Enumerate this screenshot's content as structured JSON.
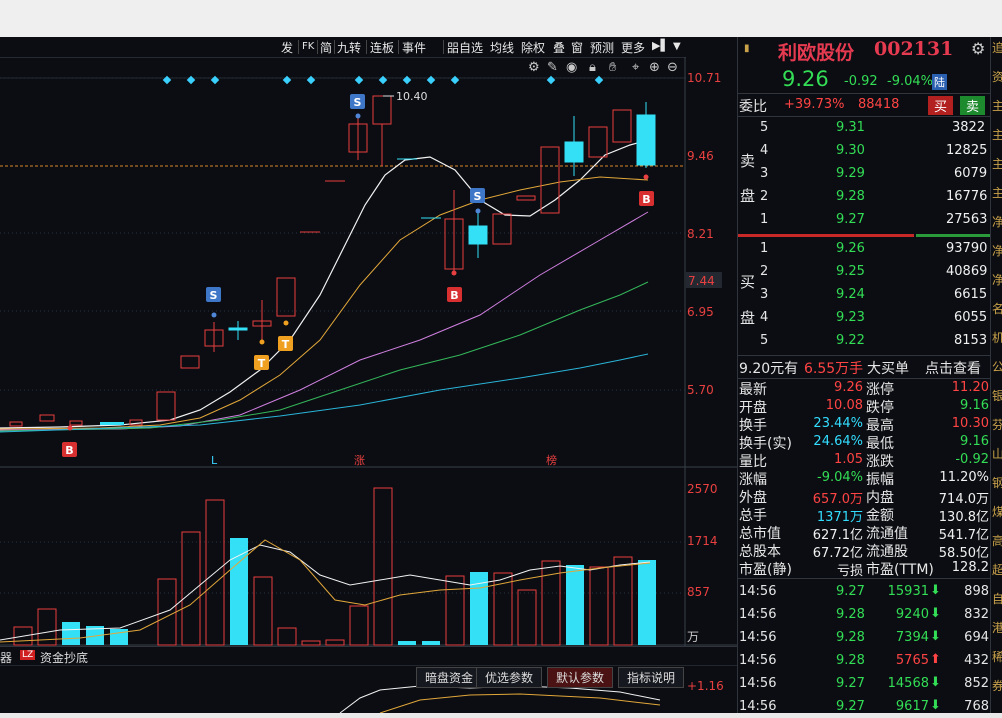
{
  "menu": [
    "发",
    "FK",
    "简",
    "九转",
    "连板",
    "事件",
    "㗊自选",
    "均线",
    "除权",
    "叠",
    "窗",
    "预测",
    "更多"
  ],
  "chart": {
    "price_axis": [
      "10.71",
      "9.46",
      "8.21",
      "7.44",
      "6.95",
      "5.70"
    ],
    "volume_axis": [
      "2570",
      "1714",
      "857",
      "万"
    ],
    "indicator_axis": [
      "+1.16"
    ],
    "high_marker": "10.40",
    "signals": {
      "s": "S",
      "b": "B",
      "t": "T"
    },
    "date_marks": [
      "L",
      "涨",
      "榜"
    ]
  },
  "bottom_tabs": {
    "left1": "器",
    "left2": "资金抄底",
    "logo": "LZ",
    "t1": "暗盘资金",
    "t2": "优选参数",
    "t3": "默认参数",
    "t4": "指标说明"
  },
  "stock": {
    "name": "利欧股份",
    "code": "002131",
    "price": "9.26",
    "change": "-0.92",
    "pct": "-9.04%",
    "exchange": "陆"
  },
  "weibi": {
    "label": "委比",
    "value": "+39.73%",
    "diff": "88418",
    "buy": "买",
    "sell": "卖"
  },
  "asks": [
    {
      "lvl": "5",
      "price": "9.31",
      "vol": "3822"
    },
    {
      "lvl": "4",
      "price": "9.30",
      "vol": "12825"
    },
    {
      "lvl": "3",
      "price": "9.29",
      "vol": "6079"
    },
    {
      "lvl": "2",
      "price": "9.28",
      "vol": "16776"
    },
    {
      "lvl": "1",
      "price": "9.27",
      "vol": "27563"
    }
  ],
  "ask_label": [
    "卖",
    "盘"
  ],
  "bids": [
    {
      "lvl": "1",
      "price": "9.26",
      "vol": "93790"
    },
    {
      "lvl": "2",
      "price": "9.25",
      "vol": "40869"
    },
    {
      "lvl": "3",
      "price": "9.24",
      "vol": "6615"
    },
    {
      "lvl": "4",
      "price": "9.23",
      "vol": "6055"
    },
    {
      "lvl": "5",
      "price": "9.22",
      "vol": "8153"
    }
  ],
  "bid_label": [
    "买",
    "盘"
  ],
  "bigorder": {
    "amount": "9.20元有",
    "value": "6.55万手",
    "label": "大买单",
    "link": "点击查看"
  },
  "stats": [
    {
      "k1": "最新",
      "v1": "9.26",
      "k2": "涨停",
      "v2": "11.20"
    },
    {
      "k1": "开盘",
      "v1": "10.08",
      "k2": "跌停",
      "v2": "9.16"
    },
    {
      "k1": "换手",
      "v1": "23.44%",
      "k2": "最高",
      "v2": "10.30"
    },
    {
      "k1": "换手(实)",
      "v1": "24.64%",
      "k2": "最低",
      "v2": "9.16"
    },
    {
      "k1": "量比",
      "v1": "1.05",
      "k2": "涨跌",
      "v2": "-0.92"
    },
    {
      "k1": "涨幅",
      "v1": "-9.04%",
      "k2": "振幅",
      "v2": "11.20%"
    },
    {
      "k1": "外盘",
      "v1": "657.0万",
      "k2": "内盘",
      "v2": "714.0万"
    },
    {
      "k1": "总手",
      "v1": "1371万",
      "k2": "金额",
      "v2": "130.8亿"
    },
    {
      "k1": "总市值",
      "v1": "627.1亿",
      "k2": "流通值",
      "v2": "541.7亿"
    },
    {
      "k1": "总股本",
      "v1": "67.72亿",
      "k2": "流通股",
      "v2": "58.50亿"
    },
    {
      "k1": "市盈(静)",
      "v1": "亏损",
      "k2": "市盈(TTM)",
      "v2": "128.2"
    }
  ],
  "ticks": [
    {
      "time": "14:56",
      "price": "9.27",
      "vol": "15931",
      "count": "898"
    },
    {
      "time": "14:56",
      "price": "9.28",
      "vol": "9240",
      "count": "832"
    },
    {
      "time": "14:56",
      "price": "9.28",
      "vol": "7394",
      "count": "694"
    },
    {
      "time": "14:56",
      "price": "9.28",
      "vol": "5765",
      "count": "432"
    },
    {
      "time": "14:56",
      "price": "9.27",
      "vol": "14568",
      "count": "852"
    },
    {
      "time": "14:56",
      "price": "9.27",
      "vol": "9617",
      "count": "768"
    }
  ],
  "far_strip": [
    "追",
    "资",
    "主",
    "主",
    "主",
    "主",
    "净",
    "净",
    "净",
    "名",
    "机",
    "公",
    "银",
    "芬",
    "山",
    "钢",
    "煤",
    "高",
    "超",
    "自",
    "港",
    "稀",
    "券"
  ]
}
